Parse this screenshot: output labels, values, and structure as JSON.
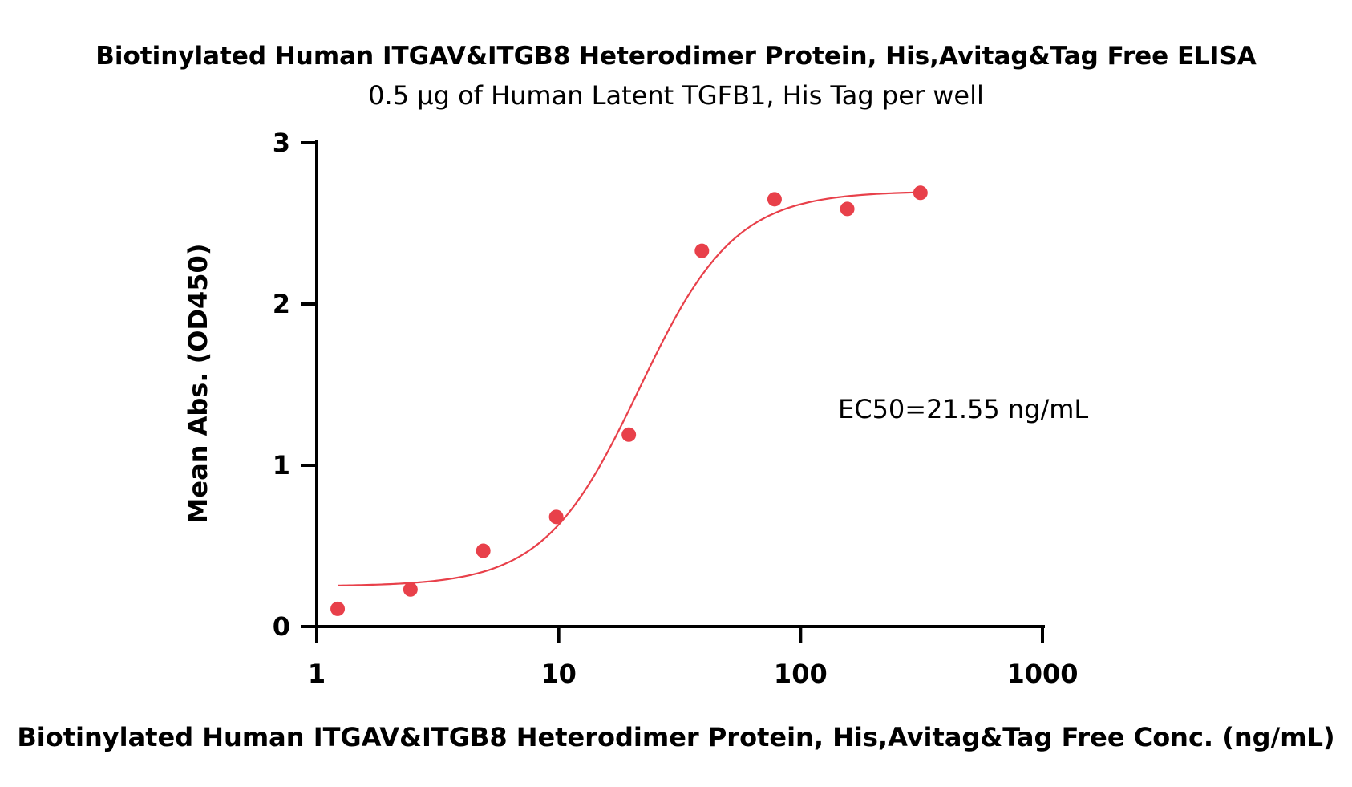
{
  "chart_data": {
    "type": "scatter",
    "title": "Biotinylated Human ITGAV&ITGB8 Heterodimer Protein, His,Avitag&Tag Free ELISA",
    "subtitle": "0.5 μg of Human Latent TGFB1, His Tag per well",
    "xlabel": "Biotinylated Human ITGAV&ITGB8 Heterodimer Protein, His,Avitag&Tag Free Conc. (ng/mL)",
    "ylabel": "Mean Abs. (OD450)",
    "x_scale": "log",
    "xlim": [
      1,
      1000
    ],
    "ylim": [
      0,
      3
    ],
    "x_ticks": [
      1,
      10,
      100,
      1000
    ],
    "x_tick_labels": [
      "1",
      "10",
      "100",
      "1000"
    ],
    "y_ticks": [
      0,
      1,
      2,
      3
    ],
    "y_tick_labels": [
      "0",
      "1",
      "2",
      "3"
    ],
    "grid": false,
    "series": [
      {
        "color": "#e8404a",
        "points": [
          {
            "x": 1.22,
            "y": 0.11
          },
          {
            "x": 2.44,
            "y": 0.23
          },
          {
            "x": 4.88,
            "y": 0.47
          },
          {
            "x": 9.77,
            "y": 0.68
          },
          {
            "x": 19.5,
            "y": 1.19
          },
          {
            "x": 39.1,
            "y": 2.33
          },
          {
            "x": 78.1,
            "y": 2.65
          },
          {
            "x": 156,
            "y": 2.59
          },
          {
            "x": 313,
            "y": 2.69
          }
        ],
        "fit": {
          "model": "4PL",
          "bottom": 0.25,
          "top": 2.7,
          "ec50": 21.55,
          "hill": 2.2,
          "x_range": [
            1.22,
            313
          ]
        }
      }
    ],
    "annotation": "EC50=21.55 ng/mL"
  }
}
